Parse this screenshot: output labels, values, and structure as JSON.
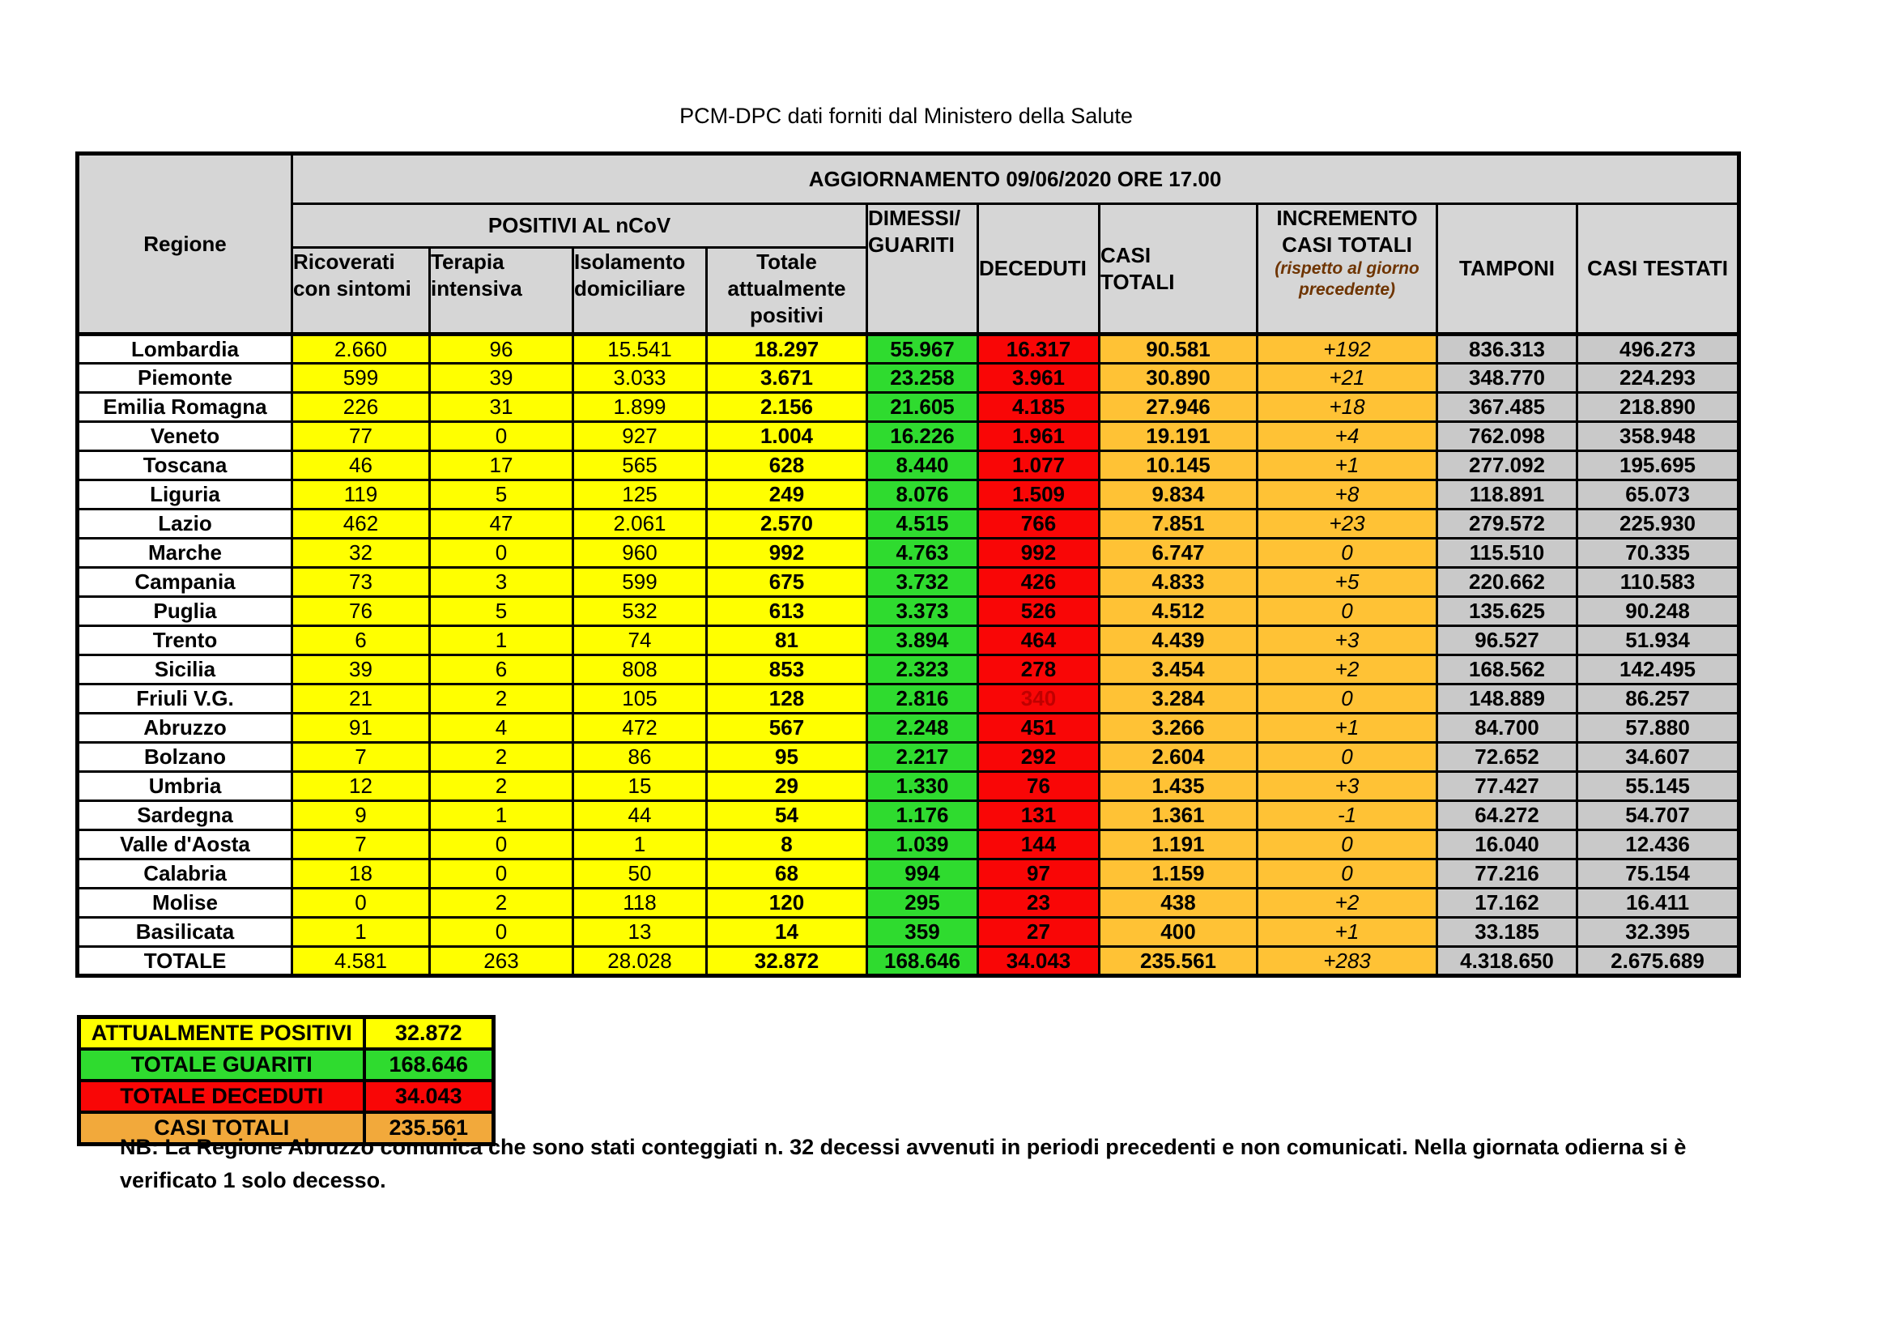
{
  "page_title": "PCM-DPC dati forniti dal Ministero della Salute",
  "table": {
    "update_header": "AGGIORNAMENTO 09/06/2020 ORE 17.00",
    "col_headers": {
      "regione": "Regione",
      "positivi_group": "POSITIVI AL nCoV",
      "ricoverati": "Ricoverati\ncon sintomi",
      "terapia": "Terapia\nintensiva",
      "isolamento": "Isolamento\ndomiciliare",
      "totale_positivi": "Totale\nattualmente\npositivi",
      "dimessi": "DIMESSI/\nGUARITI",
      "deceduti": "DECEDUTI",
      "casi_totali": "CASI\nTOTALI",
      "incremento": "INCREMENTO\nCASI  TOTALI",
      "incremento_note": "(rispetto al giorno\nprecedente)",
      "tamponi": "TAMPONI",
      "casi_testati": "CASI TESTATI"
    },
    "rows": [
      {
        "regione": "Lombardia",
        "values": [
          "2.660",
          "96",
          "15.541",
          "18.297",
          "55.967",
          "16.317",
          "90.581",
          "+192",
          "836.313",
          "496.273"
        ]
      },
      {
        "regione": "Piemonte",
        "values": [
          "599",
          "39",
          "3.033",
          "3.671",
          "23.258",
          "3.961",
          "30.890",
          "+21",
          "348.770",
          "224.293"
        ]
      },
      {
        "regione": "Emilia Romagna",
        "values": [
          "226",
          "31",
          "1.899",
          "2.156",
          "21.605",
          "4.185",
          "27.946",
          "+18",
          "367.485",
          "218.890"
        ]
      },
      {
        "regione": "Veneto",
        "values": [
          "77",
          "0",
          "927",
          "1.004",
          "16.226",
          "1.961",
          "19.191",
          "+4",
          "762.098",
          "358.948"
        ]
      },
      {
        "regione": "Toscana",
        "values": [
          "46",
          "17",
          "565",
          "628",
          "8.440",
          "1.077",
          "10.145",
          "+1",
          "277.092",
          "195.695"
        ]
      },
      {
        "regione": "Liguria",
        "values": [
          "119",
          "5",
          "125",
          "249",
          "8.076",
          "1.509",
          "9.834",
          "+8",
          "118.891",
          "65.073"
        ]
      },
      {
        "regione": "Lazio",
        "values": [
          "462",
          "47",
          "2.061",
          "2.570",
          "4.515",
          "766",
          "7.851",
          "+23",
          "279.572",
          "225.930"
        ]
      },
      {
        "regione": "Marche",
        "values": [
          "32",
          "0",
          "960",
          "992",
          "4.763",
          "992",
          "6.747",
          "0",
          "115.510",
          "70.335"
        ]
      },
      {
        "regione": "Campania",
        "values": [
          "73",
          "3",
          "599",
          "675",
          "3.732",
          "426",
          "4.833",
          "+5",
          "220.662",
          "110.583"
        ]
      },
      {
        "regione": "Puglia",
        "values": [
          "76",
          "5",
          "532",
          "613",
          "3.373",
          "526",
          "4.512",
          "0",
          "135.625",
          "90.248"
        ]
      },
      {
        "regione": "Trento",
        "values": [
          "6",
          "1",
          "74",
          "81",
          "3.894",
          "464",
          "4.439",
          "+3",
          "96.527",
          "51.934"
        ]
      },
      {
        "regione": "Sicilia",
        "values": [
          "39",
          "6",
          "808",
          "853",
          "2.323",
          "278",
          "3.454",
          "+2",
          "168.562",
          "142.495"
        ]
      },
      {
        "regione": "Friuli V.G.",
        "values": [
          "21",
          "2",
          "105",
          "128",
          "2.816",
          "340",
          "3.284",
          "0",
          "148.889",
          "86.257"
        ],
        "deceduti_color": "#c00000"
      },
      {
        "regione": "Abruzzo",
        "values": [
          "91",
          "4",
          "472",
          "567",
          "2.248",
          "451",
          "3.266",
          "+1",
          "84.700",
          "57.880"
        ]
      },
      {
        "regione": "Bolzano",
        "values": [
          "7",
          "2",
          "86",
          "95",
          "2.217",
          "292",
          "2.604",
          "0",
          "72.652",
          "34.607"
        ]
      },
      {
        "regione": "Umbria",
        "values": [
          "12",
          "2",
          "15",
          "29",
          "1.330",
          "76",
          "1.435",
          "+3",
          "77.427",
          "55.145"
        ]
      },
      {
        "regione": "Sardegna",
        "values": [
          "9",
          "1",
          "44",
          "54",
          "1.176",
          "131",
          "1.361",
          "-1",
          "64.272",
          "54.707"
        ]
      },
      {
        "regione": "Valle d'Aosta",
        "values": [
          "7",
          "0",
          "1",
          "8",
          "1.039",
          "144",
          "1.191",
          "0",
          "16.040",
          "12.436"
        ]
      },
      {
        "regione": "Calabria",
        "values": [
          "18",
          "0",
          "50",
          "68",
          "994",
          "97",
          "1.159",
          "0",
          "77.216",
          "75.154"
        ]
      },
      {
        "regione": "Molise",
        "values": [
          "0",
          "2",
          "118",
          "120",
          "295",
          "23",
          "438",
          "+2",
          "17.162",
          "16.411"
        ]
      },
      {
        "regione": "Basilicata",
        "values": [
          "1",
          "0",
          "13",
          "14",
          "359",
          "27",
          "400",
          "+1",
          "33.185",
          "32.395"
        ]
      }
    ],
    "total_row": {
      "regione": "TOTALE",
      "values": [
        "4.581",
        "263",
        "28.028",
        "32.872",
        "168.646",
        "34.043",
        "235.561",
        "+283",
        "4.318.650",
        "2.675.689"
      ]
    }
  },
  "summary": {
    "rows": [
      {
        "label": "ATTUALMENTE POSITIVI",
        "value": "32.872",
        "color": "#ffff00"
      },
      {
        "label": "TOTALE GUARITI",
        "value": "168.646",
        "color": "#2fdb2f"
      },
      {
        "label": "TOTALE DECEDUTI",
        "value": "34.043",
        "color": "#f90606"
      },
      {
        "label": "CASI TOTALI",
        "value": "235.561",
        "color": "#f2a93b"
      }
    ]
  },
  "footnote": "NB: La Regione Abruzzo comunica che sono stati conteggiati n. 32 decessi avvenuti in periodi precedenti e non comunicati. Nella giornata odierna si è verificato 1 solo decesso.",
  "colors": {
    "positivi_yellow": "#ffff00",
    "guariti_green": "#2fdb2f",
    "deceduti_red": "#f90606",
    "casi_totali_orange": "#ffc235",
    "summary_orange": "#f2a93b",
    "header_grey": "#d6d6d6",
    "tamponi_grey": "#c9c9c9",
    "friuli_deceduti_text": "#c00000",
    "incremento_note_text": "#6e3400"
  }
}
